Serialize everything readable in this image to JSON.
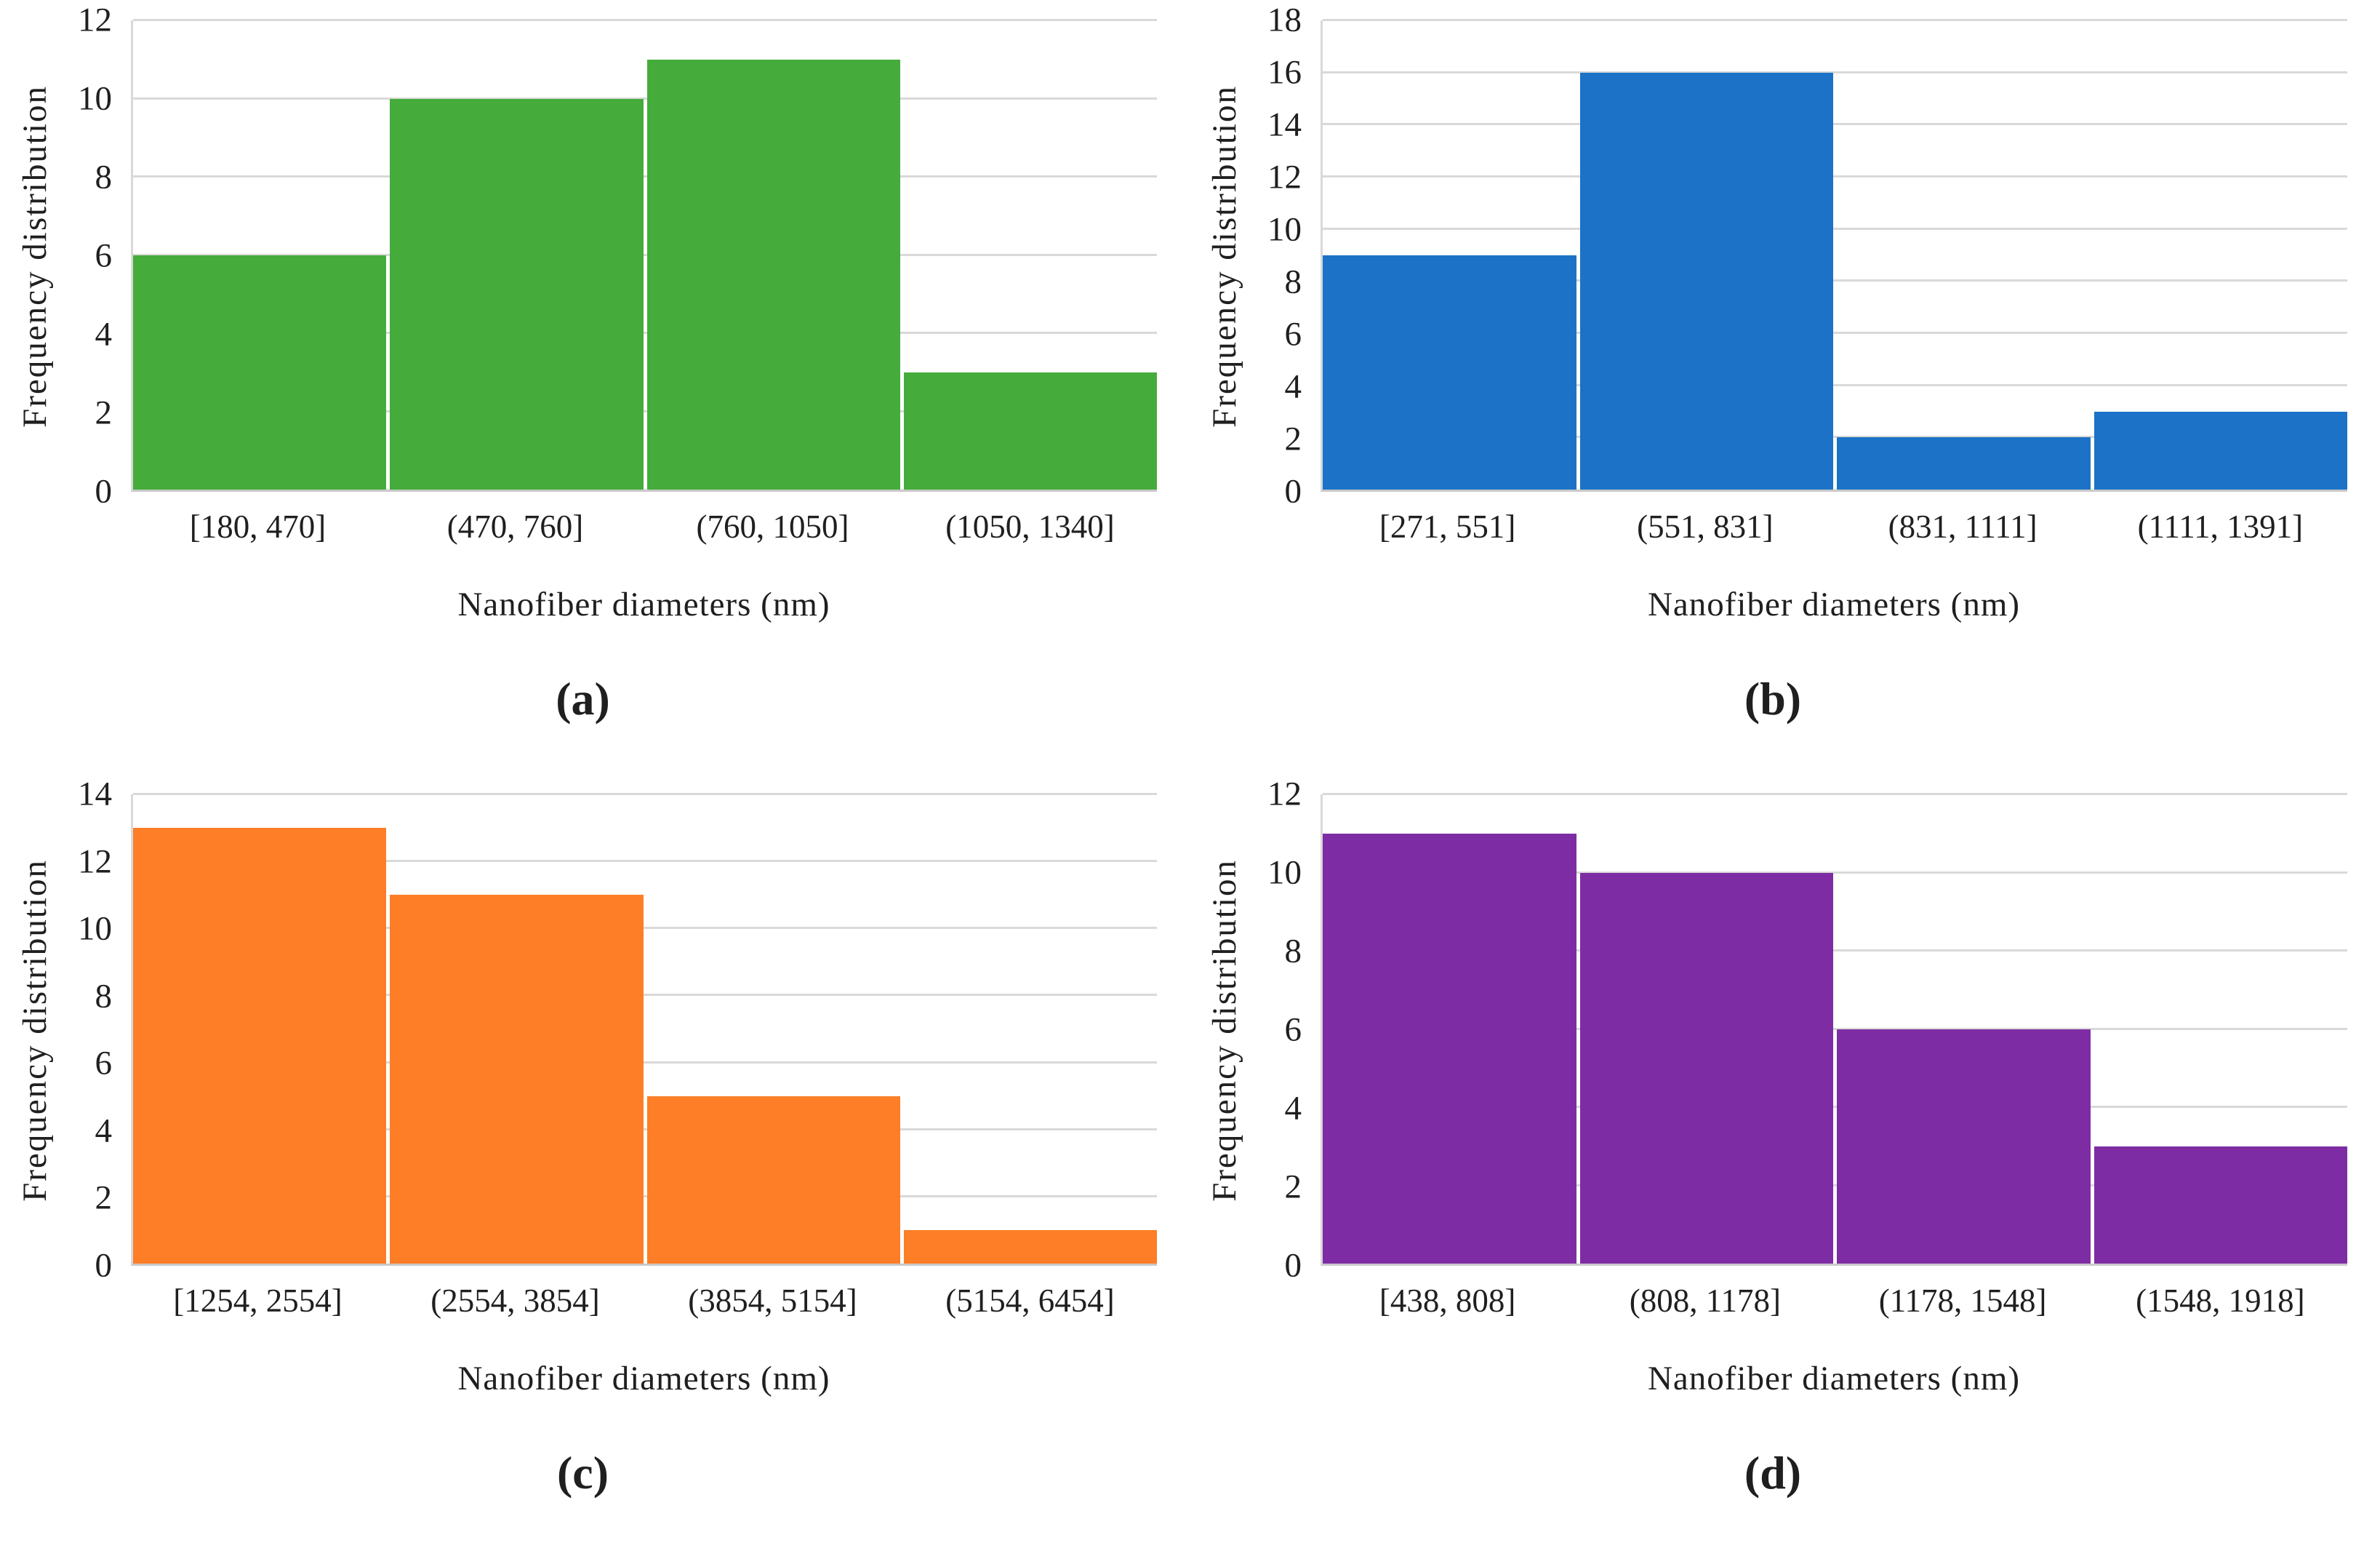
{
  "palette": {
    "gridline": "#d9d9d9",
    "axis_line": "#c9c9c9",
    "text": "#1f1f1f",
    "background": "#ffffff"
  },
  "chart_data": [
    {
      "type": "bar",
      "subtype": "histogram",
      "caption": "(a)",
      "categories": [
        "[180, 470]",
        "(470, 760]",
        "(760, 1050]",
        "(1050, 1340]"
      ],
      "values": [
        6,
        10,
        11,
        3
      ],
      "title": "",
      "xlabel": "Nanofiber diameters (nm)",
      "ylabel": "Frequency distribution",
      "ylim": [
        0,
        12
      ],
      "ytick_step": 2,
      "bar_color": "#45AC3C",
      "grid": "horizontal",
      "legend": "none"
    },
    {
      "type": "bar",
      "subtype": "histogram",
      "caption": "(b)",
      "categories": [
        "[271, 551]",
        "(551, 831]",
        "(831, 1111]",
        "(1111, 1391]"
      ],
      "values": [
        9,
        16,
        2,
        3
      ],
      "title": "",
      "xlabel": "Nanofiber diameters (nm)",
      "ylabel": "Frequency distribution",
      "ylim": [
        0,
        18
      ],
      "ytick_step": 2,
      "bar_color": "#1B72C6",
      "grid": "horizontal",
      "legend": "none"
    },
    {
      "type": "bar",
      "subtype": "histogram",
      "caption": "(c)",
      "categories": [
        "[1254, 2554]",
        "(2554, 3854]",
        "(3854, 5154]",
        "(5154, 6454]"
      ],
      "values": [
        13,
        11,
        5,
        1
      ],
      "title": "",
      "xlabel": "Nanofiber diameters (nm)",
      "ylabel": "Frequency distribution",
      "ylim": [
        0,
        14
      ],
      "ytick_step": 2,
      "bar_color": "#FD7E26",
      "grid": "horizontal",
      "legend": "none"
    },
    {
      "type": "bar",
      "subtype": "histogram",
      "caption": "(d)",
      "categories": [
        "[438, 808]",
        "(808, 1178]",
        "(1178, 1548]",
        "(1548, 1918]"
      ],
      "values": [
        11,
        10,
        6,
        3
      ],
      "title": "",
      "xlabel": "Nanofiber diameters (nm)",
      "ylabel": "Frequency distribution",
      "ylim": [
        0,
        12
      ],
      "ytick_step": 2,
      "bar_color": "#7E2CA4",
      "grid": "horizontal",
      "legend": "none"
    }
  ]
}
